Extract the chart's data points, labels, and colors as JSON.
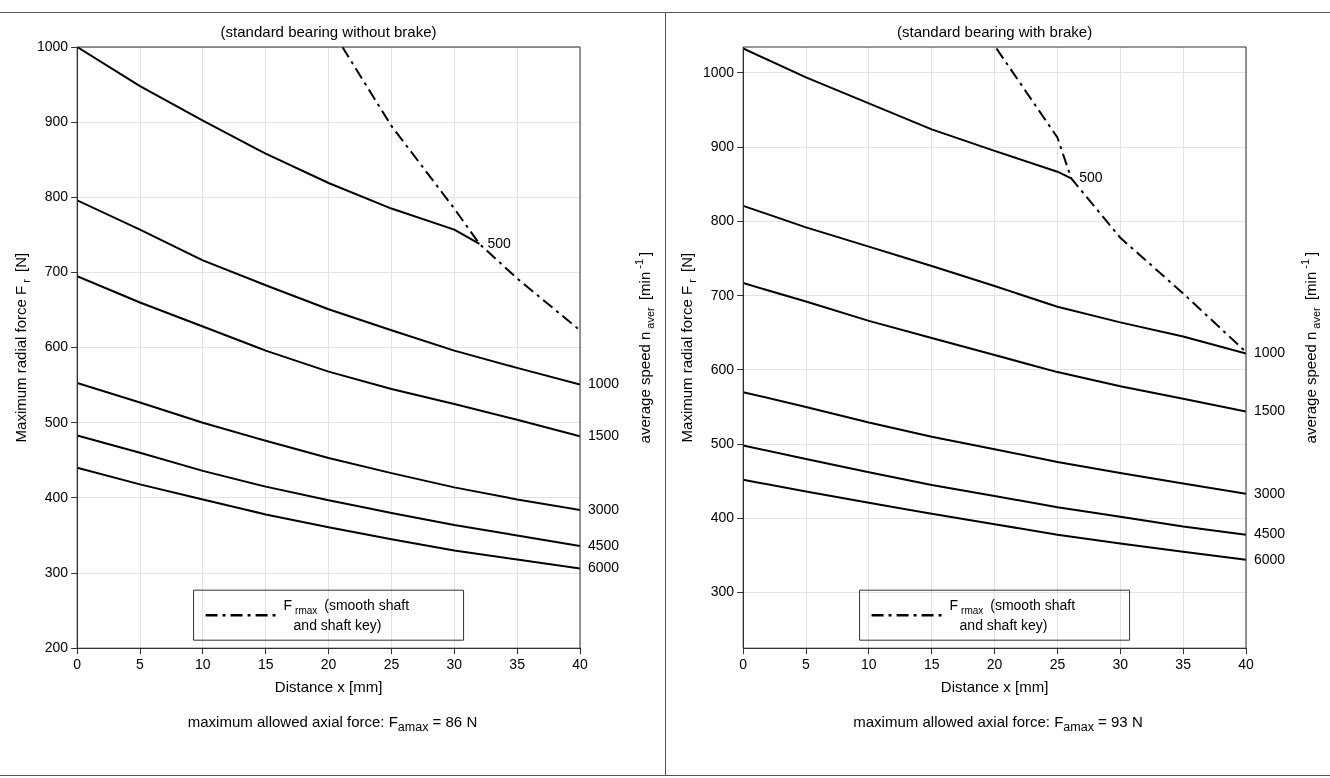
{
  "chart_data": [
    {
      "type": "line",
      "title": "(standard bearing without brake)",
      "xlabel": "Distance x [mm]",
      "ylabel": "Maximum radial force F$_{r}$ [N]",
      "y2label": "average speed n$_{aver}$ [min$^{-1}$]",
      "xlim": [
        0,
        40
      ],
      "xticks": [
        0,
        5,
        10,
        15,
        20,
        25,
        30,
        35,
        40
      ],
      "ylim": [
        200,
        1000
      ],
      "yticks": [
        200,
        300,
        400,
        500,
        600,
        700,
        800,
        900,
        1000
      ],
      "grid": true,
      "legend": "bottom",
      "series": [
        {
          "name": "500",
          "color": "#000000",
          "x": [
            0,
            5,
            10,
            15,
            20,
            25,
            30,
            32
          ],
          "values": [
            1000,
            948,
            902,
            858,
            819,
            785,
            757,
            738
          ]
        },
        {
          "name": "1000",
          "color": "#000000",
          "x": [
            0,
            5,
            10,
            15,
            20,
            25,
            30,
            35,
            40
          ],
          "values": [
            796,
            757,
            716,
            683,
            651,
            623,
            596,
            573,
            551
          ]
        },
        {
          "name": "1500",
          "color": "#000000",
          "x": [
            0,
            5,
            10,
            15,
            20,
            25,
            30,
            35,
            40
          ],
          "values": [
            695,
            660,
            628,
            596,
            568,
            545,
            525,
            504,
            482
          ]
        },
        {
          "name": "3000",
          "color": "#000000",
          "x": [
            0,
            5,
            10,
            15,
            20,
            25,
            30,
            35,
            40
          ],
          "values": [
            553,
            527,
            500,
            476,
            453,
            433,
            414,
            398,
            384
          ]
        },
        {
          "name": "4500",
          "color": "#000000",
          "x": [
            0,
            5,
            10,
            15,
            20,
            25,
            30,
            35,
            40
          ],
          "values": [
            483,
            460,
            436,
            415,
            397,
            380,
            364,
            350,
            336
          ]
        },
        {
          "name": "6000",
          "color": "#000000",
          "x": [
            0,
            5,
            10,
            15,
            20,
            25,
            30,
            35,
            40
          ],
          "values": [
            440,
            418,
            398,
            378,
            361,
            345,
            330,
            318,
            306
          ]
        },
        {
          "name": "F$_{rmax}$ (smooth shaft and shaft key)",
          "color": "#000000",
          "line_style": "dashed",
          "x": [
            21.1,
            25,
            30,
            32,
            35,
            40
          ],
          "values": [
            1000,
            895,
            785,
            738,
            692,
            623
          ]
        }
      ],
      "annotations": [
        "maximum allowed axial force: F$_{amax}$ =  86 N"
      ]
    },
    {
      "type": "line",
      "title": "(standard bearing with brake)",
      "xlabel": "Distance x [mm]",
      "ylabel": "Maximum radial force F$_{r}$ [N]",
      "y2label": "average speed n$_{aver}$ [min$^{-1}$]",
      "xlim": [
        0,
        40
      ],
      "xticks": [
        0,
        5,
        10,
        15,
        20,
        25,
        30,
        35,
        40
      ],
      "ylim": [
        225,
        1035
      ],
      "yticks": [
        300,
        400,
        500,
        600,
        700,
        800,
        900,
        1000
      ],
      "grid": true,
      "legend": "bottom",
      "series": [
        {
          "name": "500",
          "color": "#000000",
          "x": [
            0,
            5,
            10,
            15,
            20,
            25,
            26.1
          ],
          "values": [
            1033,
            994,
            959,
            924,
            895,
            867,
            858
          ]
        },
        {
          "name": "1000",
          "color": "#000000",
          "x": [
            0,
            5,
            10,
            15,
            20,
            25,
            30,
            35,
            40
          ],
          "values": [
            821,
            792,
            766,
            740,
            713,
            685,
            664,
            645,
            622
          ]
        },
        {
          "name": "1500",
          "color": "#000000",
          "x": [
            0,
            5,
            10,
            15,
            20,
            25,
            30,
            35,
            40
          ],
          "values": [
            717,
            692,
            666,
            643,
            620,
            597,
            578,
            561,
            544
          ]
        },
        {
          "name": "3000",
          "color": "#000000",
          "x": [
            0,
            5,
            10,
            15,
            20,
            25,
            30,
            35,
            40
          ],
          "values": [
            570,
            550,
            529,
            510,
            493,
            476,
            461,
            447,
            433
          ]
        },
        {
          "name": "4500",
          "color": "#000000",
          "x": [
            0,
            5,
            10,
            15,
            20,
            25,
            30,
            35,
            40
          ],
          "values": [
            498,
            480,
            462,
            445,
            430,
            415,
            402,
            389,
            378
          ]
        },
        {
          "name": "6000",
          "color": "#000000",
          "x": [
            0,
            5,
            10,
            15,
            20,
            25,
            30,
            35,
            40
          ],
          "values": [
            452,
            436,
            421,
            406,
            392,
            378,
            366,
            355,
            344
          ]
        },
        {
          "name": "F$_{rmax}$ (smooth shaft and shaft key)",
          "color": "#000000",
          "line_style": "dashed",
          "x": [
            20.15,
            25,
            26.1,
            30,
            35,
            40
          ],
          "values": [
            1033,
            913,
            858,
            778,
            703,
            624
          ]
        }
      ],
      "annotations": [
        "maximum allowed axial force: F$_{amax}$ =  93 N"
      ]
    }
  ]
}
